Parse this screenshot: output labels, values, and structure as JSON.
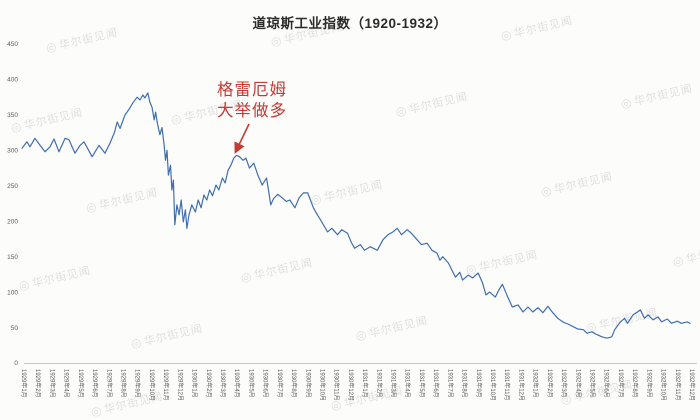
{
  "page": {
    "background": "#fcfcfb"
  },
  "watermark": {
    "text": "华尔街见闻",
    "icon": "ring-logo",
    "color": "#b9b9b9"
  },
  "annotation": {
    "line1": "格雷厄姆",
    "line2": "大举做多",
    "color": "#c23b35"
  },
  "chart_data": {
    "type": "line",
    "title": "道琼斯工业指数（1920-1932）",
    "xlabel": "",
    "ylabel": "",
    "ylim": [
      0,
      450
    ],
    "grid": false,
    "legend": "none",
    "line_color": "#3f6fad",
    "axis_color": "#c9c9c9",
    "tick_color": "#5a5a5a",
    "y_ticks": [
      450,
      400,
      350,
      300,
      250,
      200,
      150,
      100,
      50,
      0
    ],
    "x_labels": [
      "1929年1月",
      "1929年2月",
      "1929年3月",
      "1929年4月",
      "1929年5月",
      "1929年6月",
      "1929年7月",
      "1929年8月",
      "1929年9月",
      "1929年10月",
      "1929年11月",
      "1929年12月",
      "1930年1月",
      "1930年2月",
      "1930年3月",
      "1930年4月",
      "1930年5月",
      "1930年6月",
      "1930年7月",
      "1930年8月",
      "1930年9月",
      "1930年10月",
      "1930年11月",
      "1930年12月",
      "1931年1月",
      "1931年2月",
      "1931年3月",
      "1931年4月",
      "1931年5月",
      "1931年6月",
      "1931年7月",
      "1931年8月",
      "1931年9月",
      "1931年10月",
      "1931年11月",
      "1931年12月",
      "1932年1月",
      "1932年2月",
      "1932年3月",
      "1932年4月",
      "1932年5月",
      "1932年6月",
      "1932年7月",
      "1932年8月",
      "1932年9月",
      "1932年10月",
      "1932年11月",
      "1932年12月"
    ],
    "series": [
      {
        "points": [
          [
            0,
            303
          ],
          [
            0.35,
            312
          ],
          [
            0.56,
            305
          ],
          [
            0.91,
            317
          ],
          [
            1.27,
            307
          ],
          [
            1.62,
            298
          ],
          [
            1.97,
            305
          ],
          [
            2.25,
            316
          ],
          [
            2.6,
            298
          ],
          [
            3.03,
            317
          ],
          [
            3.31,
            315
          ],
          [
            3.73,
            296
          ],
          [
            4.08,
            307
          ],
          [
            4.36,
            312
          ],
          [
            4.93,
            291
          ],
          [
            5.42,
            307
          ],
          [
            5.84,
            296
          ],
          [
            6.19,
            310
          ],
          [
            6.5,
            325
          ],
          [
            6.7,
            340
          ],
          [
            6.9,
            331
          ],
          [
            7.25,
            350
          ],
          [
            7.5,
            357
          ],
          [
            7.8,
            367
          ],
          [
            8.1,
            375
          ],
          [
            8.3,
            371
          ],
          [
            8.5,
            378
          ],
          [
            8.65,
            374
          ],
          [
            8.85,
            381
          ],
          [
            9.0,
            368
          ],
          [
            9.15,
            361
          ],
          [
            9.3,
            343
          ],
          [
            9.4,
            354
          ],
          [
            9.55,
            336
          ],
          [
            9.7,
            322
          ],
          [
            9.85,
            332
          ],
          [
            10.0,
            308
          ],
          [
            10.1,
            286
          ],
          [
            10.2,
            300
          ],
          [
            10.3,
            265
          ],
          [
            10.45,
            279
          ],
          [
            10.55,
            244
          ],
          [
            10.65,
            258
          ],
          [
            10.75,
            195
          ],
          [
            10.9,
            223
          ],
          [
            11.05,
            209
          ],
          [
            11.2,
            230
          ],
          [
            11.35,
            199
          ],
          [
            11.5,
            216
          ],
          [
            11.6,
            190
          ],
          [
            11.75,
            209
          ],
          [
            11.95,
            223
          ],
          [
            12.2,
            213
          ],
          [
            12.4,
            230
          ],
          [
            12.6,
            219
          ],
          [
            12.8,
            237
          ],
          [
            13.0,
            230
          ],
          [
            13.2,
            244
          ],
          [
            13.4,
            236
          ],
          [
            13.65,
            251
          ],
          [
            13.85,
            244
          ],
          [
            14.1,
            261
          ],
          [
            14.3,
            254
          ],
          [
            14.5,
            272
          ],
          [
            14.7,
            279
          ],
          [
            14.9,
            289
          ],
          [
            15.1,
            293
          ],
          [
            15.3,
            291
          ],
          [
            15.55,
            286
          ],
          [
            15.75,
            289
          ],
          [
            16.0,
            275
          ],
          [
            16.3,
            282
          ],
          [
            16.6,
            265
          ],
          [
            16.9,
            251
          ],
          [
            17.2,
            261
          ],
          [
            17.35,
            243
          ],
          [
            17.5,
            223
          ],
          [
            17.7,
            232
          ],
          [
            18.0,
            238
          ],
          [
            18.3,
            233
          ],
          [
            18.6,
            228
          ],
          [
            18.85,
            230
          ],
          [
            19.2,
            219
          ],
          [
            19.5,
            233
          ],
          [
            19.8,
            240
          ],
          [
            20.1,
            240
          ],
          [
            20.5,
            219
          ],
          [
            20.75,
            210
          ],
          [
            21.0,
            202
          ],
          [
            21.3,
            192
          ],
          [
            21.5,
            185
          ],
          [
            21.8,
            190
          ],
          [
            22.2,
            181
          ],
          [
            22.5,
            188
          ],
          [
            22.9,
            183
          ],
          [
            23.2,
            169
          ],
          [
            23.4,
            162
          ],
          [
            23.8,
            167
          ],
          [
            24.1,
            159
          ],
          [
            24.5,
            164
          ],
          [
            25.0,
            159
          ],
          [
            25.4,
            174
          ],
          [
            25.75,
            181
          ],
          [
            26.1,
            185
          ],
          [
            26.4,
            190
          ],
          [
            26.7,
            181
          ],
          [
            27.1,
            188
          ],
          [
            27.4,
            183
          ],
          [
            27.8,
            174
          ],
          [
            28.1,
            167
          ],
          [
            28.5,
            169
          ],
          [
            28.85,
            159
          ],
          [
            29.2,
            155
          ],
          [
            29.4,
            145
          ],
          [
            29.6,
            150
          ],
          [
            30.0,
            141
          ],
          [
            30.25,
            131
          ],
          [
            30.5,
            121
          ],
          [
            30.8,
            128
          ],
          [
            31.0,
            117
          ],
          [
            31.4,
            124
          ],
          [
            31.7,
            120
          ],
          [
            32.1,
            127
          ],
          [
            32.4,
            113
          ],
          [
            32.65,
            96
          ],
          [
            32.9,
            100
          ],
          [
            33.3,
            93
          ],
          [
            33.55,
            103
          ],
          [
            33.8,
            111
          ],
          [
            34.2,
            92
          ],
          [
            34.5,
            79
          ],
          [
            34.9,
            82
          ],
          [
            35.25,
            72
          ],
          [
            35.6,
            79
          ],
          [
            35.95,
            72
          ],
          [
            36.3,
            78
          ],
          [
            36.65,
            71
          ],
          [
            37.0,
            80
          ],
          [
            37.35,
            71
          ],
          [
            37.7,
            63
          ],
          [
            38.05,
            58
          ],
          [
            38.4,
            55
          ],
          [
            38.8,
            51
          ],
          [
            39.1,
            48
          ],
          [
            39.5,
            47
          ],
          [
            39.75,
            42
          ],
          [
            40.1,
            44
          ],
          [
            40.45,
            40
          ],
          [
            40.8,
            37
          ],
          [
            41.15,
            35
          ],
          [
            41.5,
            37
          ],
          [
            41.7,
            47
          ],
          [
            42.1,
            58
          ],
          [
            42.4,
            63
          ],
          [
            42.6,
            56
          ],
          [
            43.0,
            68
          ],
          [
            43.3,
            72
          ],
          [
            43.5,
            75
          ],
          [
            43.8,
            63
          ],
          [
            44.05,
            68
          ],
          [
            44.4,
            61
          ],
          [
            44.75,
            65
          ],
          [
            45.0,
            58
          ],
          [
            45.4,
            62
          ],
          [
            45.7,
            56
          ],
          [
            46.1,
            59
          ],
          [
            46.4,
            56
          ],
          [
            46.8,
            58
          ],
          [
            47.0,
            56
          ]
        ]
      }
    ]
  }
}
